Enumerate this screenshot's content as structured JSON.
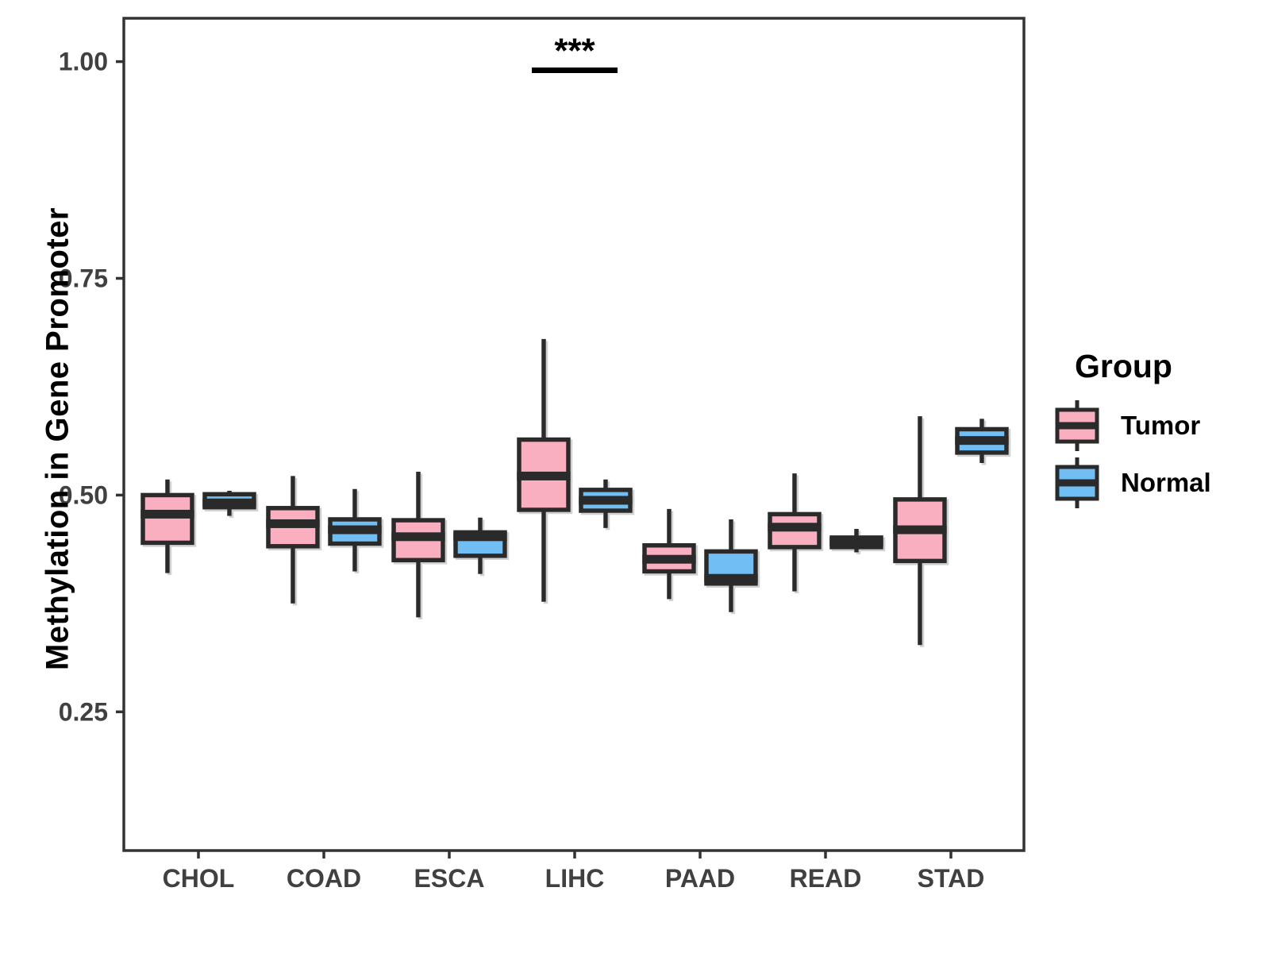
{
  "figure": {
    "background": "#FFFFFF"
  },
  "chart_data": {
    "type": "boxplot",
    "title": "",
    "xlabel": "",
    "ylabel": "Methylation in Gene Promoter",
    "categories": [
      "CHOL",
      "COAD",
      "ESCA",
      "LIHC",
      "PAAD",
      "READ",
      "STAD"
    ],
    "ylim": [
      0.09,
      1.05
    ],
    "yticks": [
      0.25,
      0.5,
      0.75,
      1.0
    ],
    "ytick_labels": [
      "0.25",
      "0.50",
      "0.75",
      "1.00"
    ],
    "grid": false,
    "legend": {
      "title": "Group",
      "position": "right",
      "entries": [
        {
          "label": "Tumor",
          "color": "#FAAFC1"
        },
        {
          "label": "Normal",
          "color": "#70BEF3"
        }
      ]
    },
    "series": [
      {
        "name": "Tumor",
        "color": "#FAAFC1",
        "boxes": [
          {
            "category": "CHOL",
            "min": 0.41,
            "q1": 0.445,
            "median": 0.478,
            "q3": 0.5,
            "max": 0.518
          },
          {
            "category": "COAD",
            "min": 0.375,
            "q1": 0.441,
            "median": 0.467,
            "q3": 0.485,
            "max": 0.522
          },
          {
            "category": "ESCA",
            "min": 0.359,
            "q1": 0.425,
            "median": 0.452,
            "q3": 0.471,
            "max": 0.527
          },
          {
            "category": "LIHC",
            "min": 0.377,
            "q1": 0.483,
            "median": 0.522,
            "q3": 0.564,
            "max": 0.68
          },
          {
            "category": "PAAD",
            "min": 0.38,
            "q1": 0.412,
            "median": 0.426,
            "q3": 0.442,
            "max": 0.484
          },
          {
            "category": "READ",
            "min": 0.389,
            "q1": 0.44,
            "median": 0.463,
            "q3": 0.478,
            "max": 0.525
          },
          {
            "category": "STAD",
            "min": 0.327,
            "q1": 0.424,
            "median": 0.46,
            "q3": 0.495,
            "max": 0.591
          }
        ]
      },
      {
        "name": "Normal",
        "color": "#70BEF3",
        "boxes": [
          {
            "category": "CHOL",
            "min": 0.476,
            "q1": 0.486,
            "median": 0.491,
            "q3": 0.501,
            "max": 0.505
          },
          {
            "category": "COAD",
            "min": 0.412,
            "q1": 0.444,
            "median": 0.46,
            "q3": 0.472,
            "max": 0.507
          },
          {
            "category": "ESCA",
            "min": 0.409,
            "q1": 0.43,
            "median": 0.452,
            "q3": 0.457,
            "max": 0.474
          },
          {
            "category": "LIHC",
            "min": 0.462,
            "q1": 0.482,
            "median": 0.494,
            "q3": 0.506,
            "max": 0.518
          },
          {
            "category": "PAAD",
            "min": 0.365,
            "q1": 0.398,
            "median": 0.404,
            "q3": 0.435,
            "max": 0.472
          },
          {
            "category": "READ",
            "min": 0.434,
            "q1": 0.44,
            "median": 0.446,
            "q3": 0.451,
            "max": 0.461
          },
          {
            "category": "STAD",
            "min": 0.537,
            "q1": 0.549,
            "median": 0.563,
            "q3": 0.576,
            "max": 0.588
          }
        ]
      }
    ],
    "annotations": [
      {
        "type": "significance-bracket",
        "label": "***",
        "category": "LIHC",
        "y": 0.99
      }
    ],
    "colors": {
      "box_border": "#2A2A2A",
      "panel_border": "#333333",
      "axis_text": "#404040",
      "annotation": "#000000"
    }
  }
}
